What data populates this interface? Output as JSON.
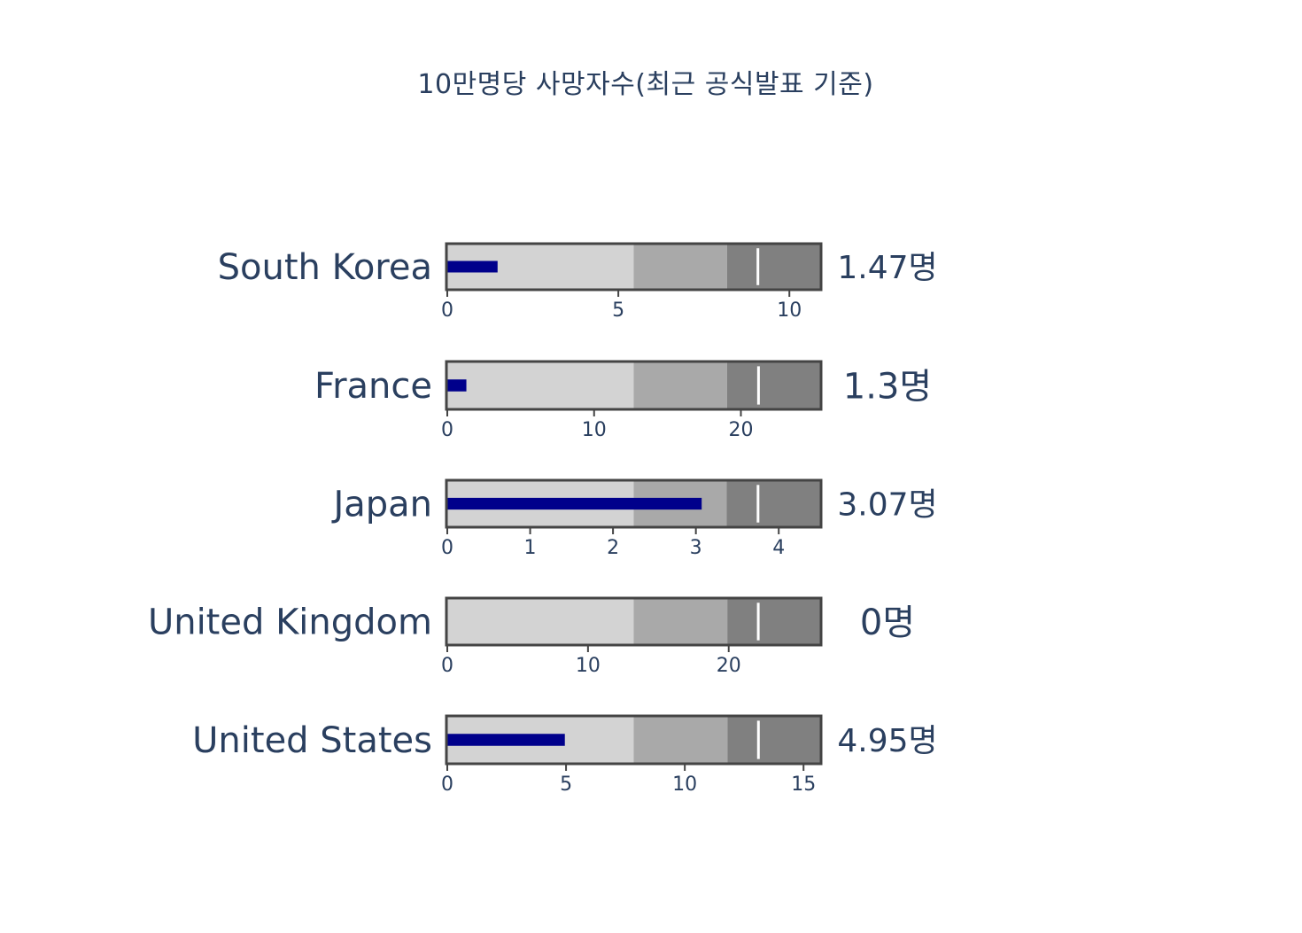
{
  "chart_data": {
    "type": "bullet",
    "title": "10만명당 사망자수(최근 공식발표 기준)",
    "value_suffix": "명",
    "range_colors": [
      "#d3d3d3",
      "#a9a9a9",
      "#808080"
    ],
    "bar_color": "#00008b",
    "threshold_color": "#ffffff",
    "items": [
      {
        "label": "South Korea",
        "value": 1.47,
        "value_text": "1.47명",
        "axis_range": [
          0,
          10.9
        ],
        "steps": [
          5.45,
          8.18,
          10.9
        ],
        "threshold": 9.08,
        "ticks": [
          0,
          5,
          10
        ]
      },
      {
        "label": "France",
        "value": 1.3,
        "value_text": "1.3명",
        "axis_range": [
          0,
          25.4
        ],
        "steps": [
          12.7,
          19.05,
          25.4
        ],
        "threshold": 21.2,
        "ticks": [
          0,
          10,
          20
        ]
      },
      {
        "label": "Japan",
        "value": 3.07,
        "value_text": "3.07명",
        "axis_range": [
          0,
          4.5
        ],
        "steps": [
          2.25,
          3.37,
          4.5
        ],
        "threshold": 3.75,
        "ticks": [
          0,
          1,
          2,
          3,
          4
        ]
      },
      {
        "label": "United Kingdom",
        "value": 0,
        "value_text": "0명",
        "axis_range": [
          0,
          26.5
        ],
        "steps": [
          13.25,
          19.9,
          26.5
        ],
        "threshold": 22.1,
        "ticks": [
          0,
          10,
          20
        ]
      },
      {
        "label": "United States",
        "value": 4.95,
        "value_text": "4.95명",
        "axis_range": [
          0,
          15.7
        ],
        "steps": [
          7.85,
          11.8,
          15.7
        ],
        "threshold": 13.1,
        "ticks": [
          0,
          5,
          10,
          15
        ]
      }
    ]
  }
}
